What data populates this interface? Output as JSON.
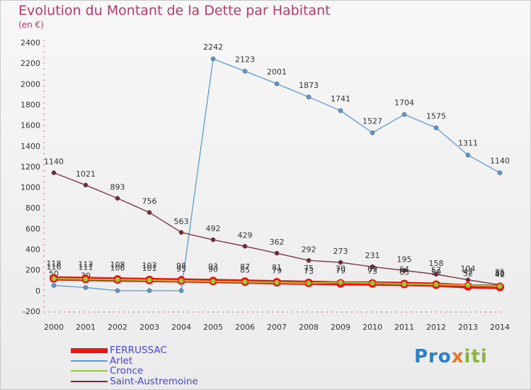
{
  "chart_data": {
    "type": "line",
    "title": "Evolution du Montant de la Dette par Habitant",
    "subtitle": "(en €)",
    "x": [
      "2000",
      "2001",
      "2002",
      "2003",
      "2004",
      "2005",
      "2006",
      "2007",
      "2008",
      "2009",
      "2010",
      "2011",
      "2012",
      "2013",
      "2014"
    ],
    "ylim": [
      -200,
      2400
    ],
    "yticks": [
      -200,
      0,
      200,
      400,
      600,
      800,
      1000,
      1200,
      1400,
      1600,
      1800,
      2000,
      2200,
      2400
    ],
    "grid": false,
    "legend_position": "bottom-left",
    "series": [
      {
        "name": "FERRUSSAC",
        "color": "#ee1111",
        "values": [
          118,
          113,
          108,
          103,
          98,
          93,
          87,
          81,
          75,
          70,
          69,
          64,
          57,
          42,
          35
        ]
      },
      {
        "name": "Arlet",
        "color": "#5b9bd5",
        "values": [
          50,
          30,
          0,
          0,
          0,
          2242,
          2123,
          2001,
          1873,
          1741,
          1527,
          1704,
          1575,
          1311,
          1140
        ]
      },
      {
        "name": "Cronce",
        "color": "#99cc33",
        "values": [
          116,
          111,
          106,
          101,
          95,
          90,
          85,
          79,
          73,
          79,
          73,
          63,
          59,
          52,
          42
        ]
      },
      {
        "name": "Saint-Austremoine",
        "color": "#7a2a35",
        "values": [
          1140,
          1021,
          893,
          756,
          563,
          492,
          429,
          362,
          292,
          273,
          231,
          195,
          158,
          104,
          56
        ]
      }
    ]
  },
  "logo_text": [
    "Pro",
    "x",
    "iti"
  ]
}
